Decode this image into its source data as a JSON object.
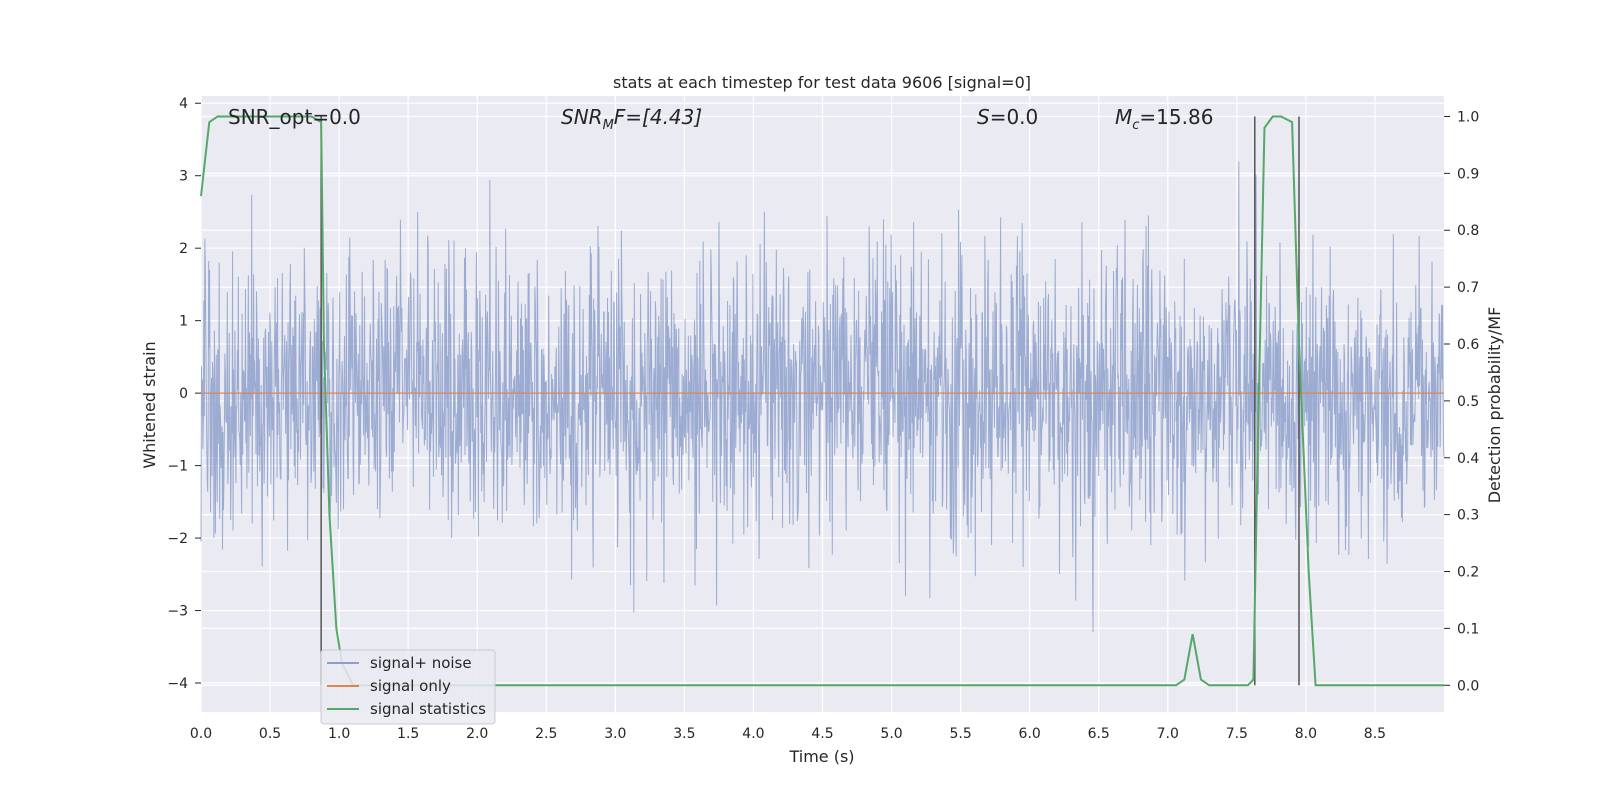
{
  "chart_data": {
    "type": "line",
    "title": "stats at each timestep for test data 9606 [signal=0]",
    "xlabel": "Time (s)",
    "ylabel": "Whitened strain",
    "y2label": "Detection probability/MF",
    "xlim": [
      0.0,
      9.0
    ],
    "ylim": [
      -4.4,
      4.1
    ],
    "y2lim": [
      -0.047,
      1.036
    ],
    "xticks": [
      "0.0",
      "0.5",
      "1.0",
      "1.5",
      "2.0",
      "2.5",
      "3.0",
      "3.5",
      "4.0",
      "4.5",
      "5.0",
      "5.5",
      "6.0",
      "6.5",
      "7.0",
      "7.5",
      "8.0",
      "8.5"
    ],
    "yticks": [
      "4",
      "3",
      "2",
      "1",
      "0",
      "−1",
      "−2",
      "−3",
      "−4"
    ],
    "y2ticks": [
      "1.0",
      "0.9",
      "0.8",
      "0.7",
      "0.6",
      "0.5",
      "0.4",
      "0.3",
      "0.2",
      "0.1",
      "0.0"
    ],
    "grid": true,
    "legend_position": "lower-left",
    "annotations": {
      "snr_opt": "SNR_opt=0.0",
      "snr_mf_main": "SNR",
      "snr_mf_sub": "M",
      "snr_mf_tail": "F=[4.43]",
      "s_var": "S",
      "s_val": "=0.0",
      "mc_var": "M",
      "mc_sub": "c",
      "mc_val": "=15.86"
    },
    "series": [
      {
        "name": "signal+ noise",
        "color": "#8da0cb",
        "description": "noise-dominated whitened strain, roughly within ±2 with spikes to ±4",
        "amplitude_range": [
          -4.0,
          3.7
        ]
      },
      {
        "name": "signal only",
        "color": "#dd8452",
        "x": [
          0.0,
          9.0
        ],
        "y": [
          0.0,
          0.0
        ]
      },
      {
        "name": "signal statistics",
        "color": "#55a868",
        "axis": "right",
        "x": [
          0.0,
          0.06,
          0.12,
          0.2,
          0.4,
          0.6,
          0.8,
          0.87,
          0.89,
          0.93,
          0.98,
          1.02,
          1.1,
          1.5,
          2.0,
          3.0,
          4.0,
          5.0,
          6.0,
          6.5,
          7.0,
          7.06,
          7.12,
          7.18,
          7.24,
          7.3,
          7.5,
          7.58,
          7.62,
          7.65,
          7.7,
          7.76,
          7.82,
          7.9,
          7.95,
          8.02,
          8.07,
          8.1,
          8.5,
          9.0
        ],
        "y": [
          0.86,
          0.99,
          1.0,
          1.0,
          1.0,
          1.0,
          1.0,
          0.99,
          0.6,
          0.3,
          0.1,
          0.04,
          0.0,
          0.0,
          0.0,
          0.0,
          0.0,
          0.0,
          0.0,
          0.0,
          0.0,
          0.0,
          0.01,
          0.09,
          0.01,
          0.0,
          0.0,
          0.0,
          0.01,
          0.4,
          0.98,
          1.0,
          1.0,
          0.99,
          0.6,
          0.2,
          0.0,
          0.0,
          0.0,
          0.0
        ]
      }
    ],
    "vlines": [
      {
        "x": 0.87,
        "color": "#555555"
      },
      {
        "x": 7.63,
        "color": "#555555"
      },
      {
        "x": 7.95,
        "color": "#555555"
      }
    ]
  }
}
